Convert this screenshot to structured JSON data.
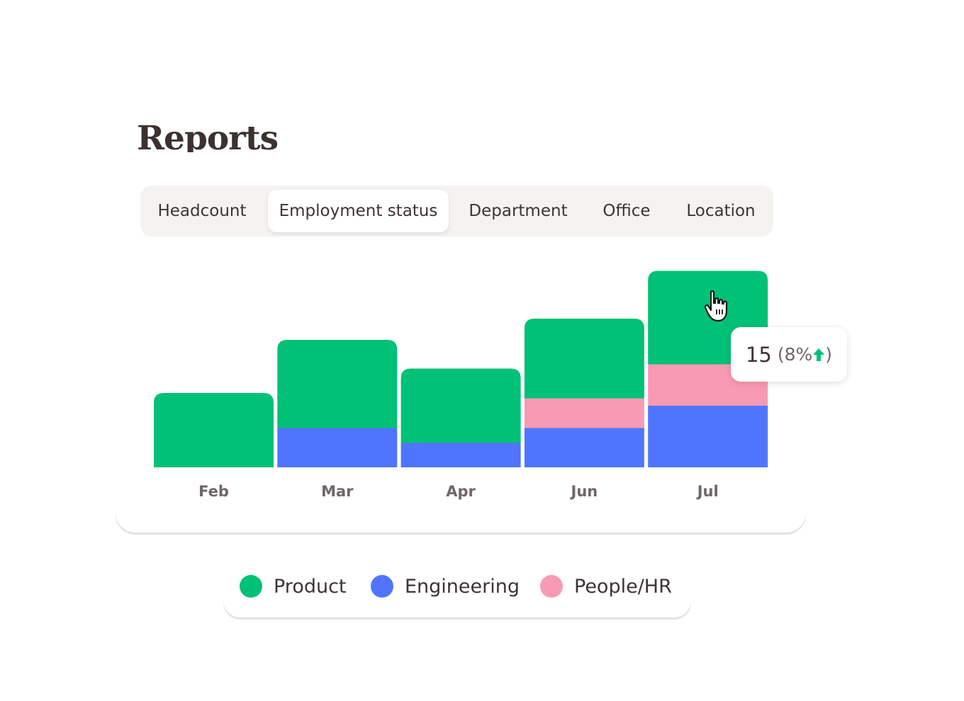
{
  "page": {
    "title": "Reports"
  },
  "tabs": [
    {
      "label": "Headcount",
      "active": false
    },
    {
      "label": "Employment status",
      "active": true
    },
    {
      "label": "Department",
      "active": false
    },
    {
      "label": "Office",
      "active": false
    },
    {
      "label": "Location",
      "active": false
    }
  ],
  "tooltip": {
    "value": "15",
    "percent_open": "(8%",
    "percent_close": ")",
    "trend_icon": "arrow-up-icon"
  },
  "cursor": {
    "icon": "hand-pointer-icon"
  },
  "colors": {
    "product": "#00c176",
    "engineering": "#4f75fe",
    "people_hr": "#f89ab3"
  },
  "chart_data": {
    "type": "bar",
    "stacked": true,
    "categories": [
      "Feb",
      "Mar",
      "Apr",
      "Jun",
      "Jul"
    ],
    "ylim": [
      0,
      100
    ],
    "series": [
      {
        "name": "Engineering",
        "values": [
          0,
          18.5,
          11.5,
          18.5,
          29
        ],
        "color": "#4f75fe"
      },
      {
        "name": "People/HR",
        "values": [
          0,
          0,
          0,
          14,
          19.5
        ],
        "color": "#f89ab3"
      },
      {
        "name": "Product",
        "values": [
          35,
          41.5,
          35,
          37.5,
          44
        ],
        "color": "#00c176"
      }
    ],
    "legend": {
      "position": "bottom"
    }
  }
}
